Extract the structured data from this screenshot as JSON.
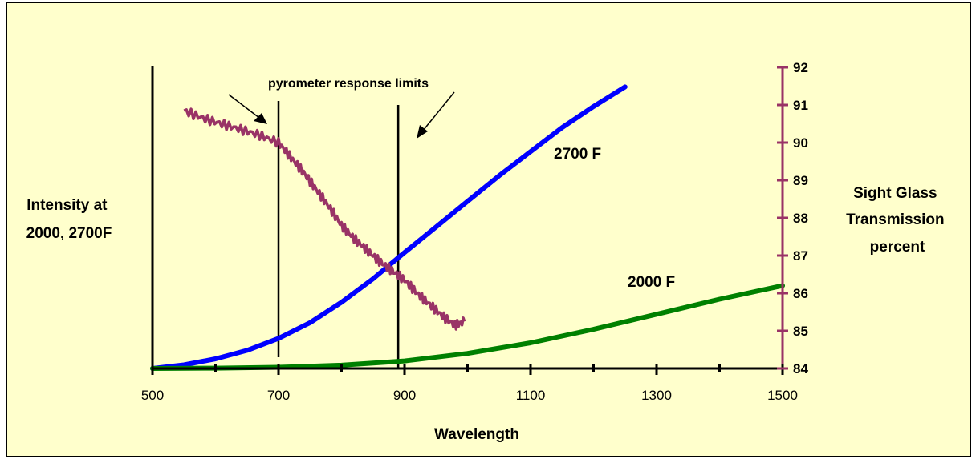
{
  "chart_data": {
    "type": "line",
    "xlabel": "Wavelength",
    "ylabel_left": "Intensity at 2000, 2700F",
    "ylabel_left_lines": [
      "Intensity at",
      "2000, 2700F"
    ],
    "ylabel_right": "Sight Glass Transmission percent",
    "ylabel_right_lines": [
      "Sight Glass",
      "Transmission",
      "percent"
    ],
    "x_ticks": [
      500,
      700,
      900,
      1100,
      1300,
      1500
    ],
    "xlim": [
      500,
      1500
    ],
    "y_right_ticks": [
      84,
      85,
      86,
      87,
      88,
      89,
      90,
      91,
      92
    ],
    "y_right_lim": [
      84,
      92
    ],
    "grid": false,
    "annotation": "pyrometer response limits",
    "pyrometer_limits": [
      700,
      890
    ],
    "series": [
      {
        "name": "2700 F",
        "axis": "left",
        "color": "#0000ff",
        "x": [
          500,
          550,
          600,
          650,
          700,
          750,
          800,
          850,
          900,
          950,
          1000,
          1050,
          1100,
          1150,
          1200,
          1250
        ],
        "y": [
          0.0,
          0.012,
          0.032,
          0.06,
          0.1,
          0.152,
          0.22,
          0.298,
          0.385,
          0.47,
          0.555,
          0.64,
          0.72,
          0.8,
          0.87,
          0.935
        ]
      },
      {
        "name": "2000 F",
        "axis": "left",
        "color": "#008000",
        "x": [
          500,
          600,
          700,
          800,
          900,
          1000,
          1100,
          1200,
          1300,
          1400,
          1500
        ],
        "y": [
          0.0,
          0.001,
          0.004,
          0.011,
          0.025,
          0.05,
          0.085,
          0.13,
          0.18,
          0.23,
          0.275
        ]
      },
      {
        "name": "transmission",
        "axis": "right",
        "color": "#993366",
        "x": [
          550,
          580,
          610,
          640,
          670,
          700,
          720,
          740,
          760,
          780,
          800,
          820,
          840,
          860,
          880,
          900,
          920,
          940,
          960,
          980,
          995
        ],
        "y": [
          90.85,
          90.65,
          90.5,
          90.35,
          90.2,
          90.0,
          89.6,
          89.2,
          88.75,
          88.3,
          87.8,
          87.45,
          87.15,
          86.85,
          86.6,
          86.35,
          86.0,
          85.7,
          85.4,
          85.15,
          85.25
        ]
      }
    ],
    "series_labels": [
      "2700 F",
      "2000 F"
    ]
  }
}
